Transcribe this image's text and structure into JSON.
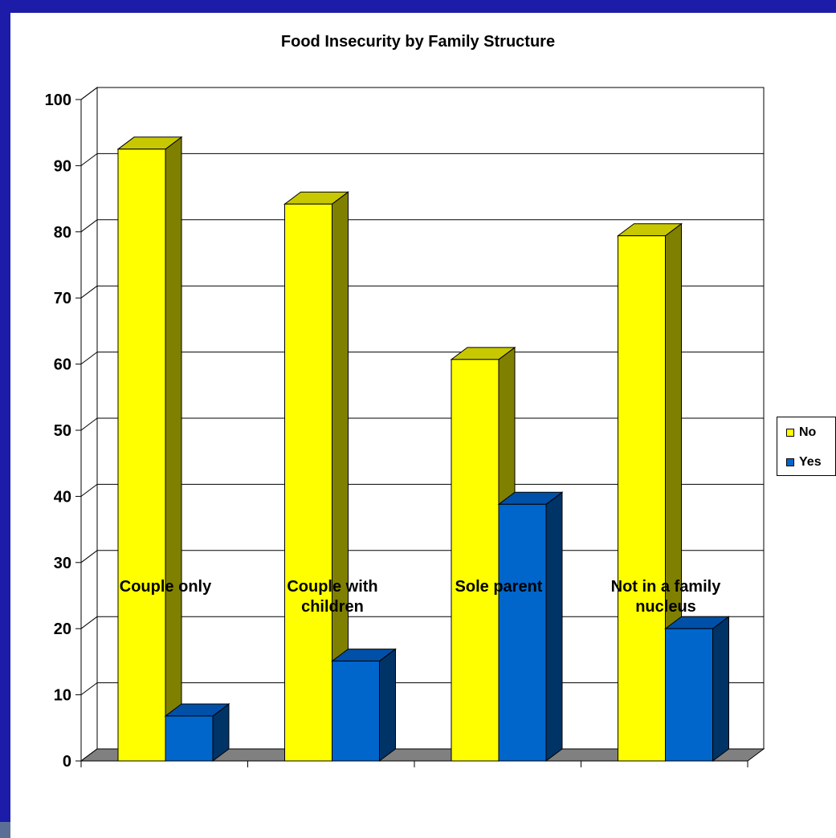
{
  "chart_data": {
    "type": "bar",
    "title": "Food Insecurity by Family Structure",
    "categories": [
      "Couple only",
      "Couple with children",
      "Sole parent",
      "Not in a family nucleus"
    ],
    "category_lines": [
      [
        "Couple only"
      ],
      [
        "Couple with",
        "children"
      ],
      [
        "Sole parent"
      ],
      [
        "Not in a family",
        "nucleus"
      ]
    ],
    "series": [
      {
        "name": "No",
        "values": [
          92.5,
          84.2,
          60.7,
          79.4
        ],
        "color": "#ffff00",
        "side_color": "#808000",
        "top_color": "#c8c800"
      },
      {
        "name": "Yes",
        "values": [
          6.8,
          15.1,
          38.8,
          20.0
        ],
        "color": "#0066cc",
        "side_color": "#003366",
        "top_color": "#0050a8"
      }
    ],
    "ylim": [
      0,
      100
    ],
    "yticks": [
      "0",
      "10",
      "20",
      "30",
      "40",
      "50",
      "60",
      "70",
      "80",
      "90",
      "100"
    ],
    "grid": true,
    "legend_position": "right",
    "style": "3d"
  }
}
